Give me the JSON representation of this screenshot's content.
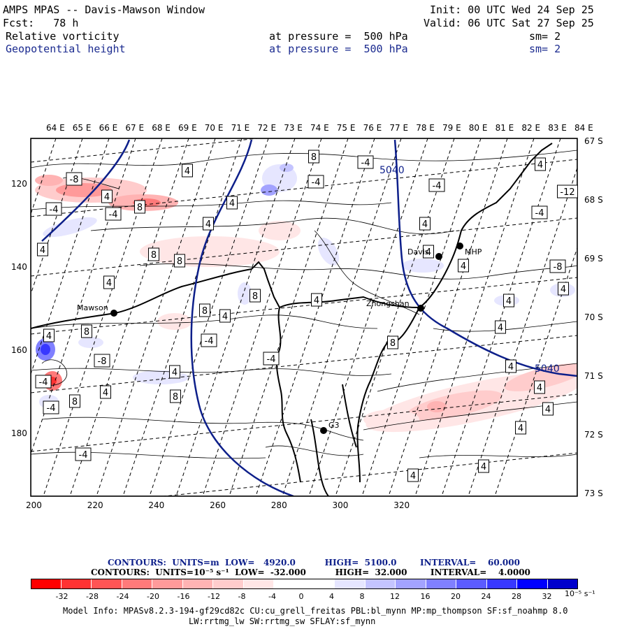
{
  "header": {
    "title": "AMPS MPAS -- Davis-Mawson Window",
    "init": "Init: 00 UTC Wed 24 Sep 25",
    "forecast": "Fcst:   78 h",
    "valid": "Valid: 06 UTC Sat 27 Sep 25",
    "field1": {
      "name": "Relative vorticity",
      "level": "at pressure =  500 hPa",
      "smooth": "sm= 2"
    },
    "field2": {
      "name": "Geopotential height",
      "level": "at pressure =  500 hPa",
      "smooth": "sm= 2"
    }
  },
  "map": {
    "lon_labels": [
      "64 E",
      "65 E",
      "66 E",
      "67 E",
      "68 E",
      "69 E",
      "70 E",
      "71 E",
      "72 E",
      "73 E",
      "74 E",
      "75 E",
      "76 E",
      "77 E",
      "78 E",
      "79 E",
      "80 E",
      "81 E",
      "82 E",
      "83 E",
      "84 E"
    ],
    "lat_labels": [
      "67 S",
      "68 S",
      "69 S",
      "70 S",
      "71 S",
      "72 S",
      "73 S"
    ],
    "y_ticks": [
      "120",
      "140",
      "160",
      "180"
    ],
    "x_ticks": [
      "200",
      "220",
      "240",
      "260",
      "280",
      "300",
      "320"
    ],
    "stations": [
      "Mawson",
      "Davis",
      "Zhongshan",
      "G3",
      "MHP"
    ],
    "height_contour_labels": [
      "5040",
      "5040"
    ],
    "vorticity_box_labels": [
      "8",
      "-4",
      "4",
      "-8",
      "-4",
      "4",
      "-4",
      "-12",
      "4",
      "8",
      "4",
      "-4",
      "-4",
      "4",
      "4",
      "-4",
      "4",
      "4",
      "8",
      "8",
      "4",
      "-8",
      "4",
      "4",
      "8",
      "4",
      "8",
      "4",
      "4",
      "4",
      "8",
      "4",
      "8",
      "-4",
      "-8",
      "-4",
      "4",
      "4",
      "-4",
      "4",
      "4",
      "8",
      "8",
      "-4",
      "4",
      "4",
      "-4",
      "4",
      "4",
      "4",
      "-4",
      "4",
      "8"
    ],
    "colors": {
      "frame": "#000000",
      "height_contour": "#0d1f8a",
      "negative": "#e8363a",
      "positive": "#3a4fd6"
    }
  },
  "legend": {
    "contours_height": "CONTOURS:  UNITS=m  LOW=   4920.0          HIGH=  5100.0        INTERVAL=    60.000",
    "contours_vort": "CONTOURS:  UNITS=10⁻⁵ s⁻¹  LOW=  -32.000          HIGH=  32.000        INTERVAL=    4.0000",
    "colorbar_labels": [
      "-32",
      "-28",
      "-24",
      "-20",
      "-16",
      "-12",
      "-8",
      "-4",
      "0",
      "4",
      "8",
      "12",
      "16",
      "20",
      "24",
      "28",
      "32"
    ],
    "colorbar_unit": "10⁻⁵ s⁻¹",
    "colorbar_colors": [
      "#ff0000",
      "#ff3333",
      "#ff5555",
      "#ff7a7a",
      "#ff9a9a",
      "#ffb3b3",
      "#ffcccc",
      "#ffe6e6",
      "#ffffff",
      "#ffffff",
      "#e6e6ff",
      "#c4c4ff",
      "#a3a3ff",
      "#8080ff",
      "#5c5cff",
      "#3838ff",
      "#0000ff",
      "#0000cc"
    ]
  },
  "footer": {
    "model_info_1": "Model Info: MPASv8.2.3-194-gf29cd82c CU:cu_grell_freitas PBL:bl_mynn MP:mp_thompson SF:sf_noahmp 8.0",
    "model_info_2": "LW:rrtmg_lw SW:rrtmg_sw SFLAY:sf_mynn"
  }
}
